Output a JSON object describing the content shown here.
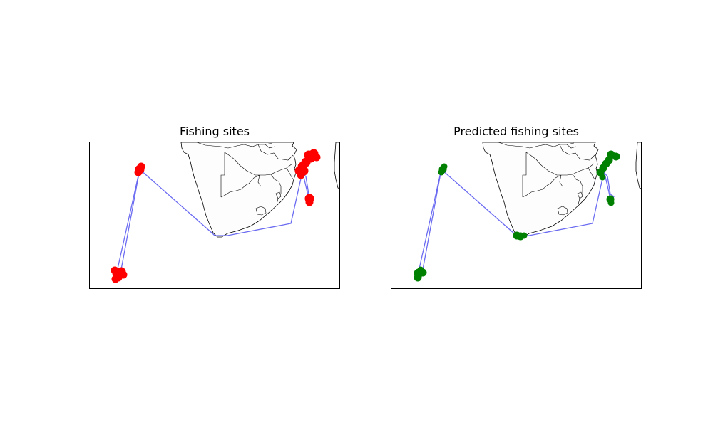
{
  "figure": {
    "left_map": {
      "title": "Fishing sites",
      "marker_color": "#ff0000",
      "route_color": "#6b6bf2"
    },
    "right_map": {
      "title": "Predicted fishing sites",
      "marker_color": "#008000",
      "route_color": "#6b6bf2"
    }
  }
}
